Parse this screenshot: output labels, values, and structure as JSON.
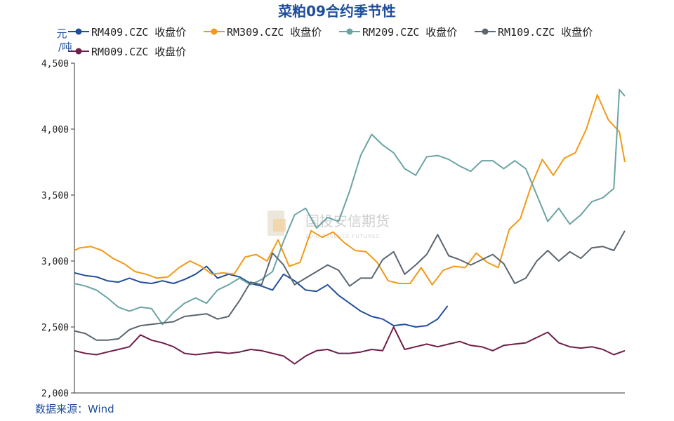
{
  "chart_data": {
    "type": "line",
    "title": "菜粕09合约季节性",
    "ylabel": "元/吨",
    "unit_line1": "元",
    "unit_line2": "/吨",
    "ylim": [
      2000,
      4500
    ],
    "yticks": [
      2000,
      2500,
      3000,
      3500,
      4000,
      4500
    ],
    "ytick_labels": [
      "2,000",
      "2,500",
      "3,000",
      "3,500",
      "4,000",
      "4,500"
    ],
    "x_domain": [
      0,
      100
    ],
    "grid": false,
    "legend_position": "top",
    "source": "数据来源：Wind",
    "watermark_cn": "国投安信期货",
    "watermark_en": "SDIC ESSENCE FUTURES",
    "series": [
      {
        "name": "RM409.CZC 收盘价",
        "color": "#1f4e9c",
        "x": [
          0,
          2,
          4,
          6,
          8,
          10,
          12,
          14,
          16,
          18,
          20,
          22,
          24,
          26,
          28,
          30,
          32,
          34,
          36,
          38,
          40,
          42,
          44,
          46,
          48,
          50,
          52,
          54,
          56,
          58,
          60,
          62,
          64,
          66,
          67.8
        ],
        "y": [
          2910,
          2890,
          2880,
          2850,
          2840,
          2870,
          2840,
          2830,
          2850,
          2830,
          2860,
          2900,
          2960,
          2870,
          2900,
          2880,
          2830,
          2810,
          2780,
          2900,
          2850,
          2780,
          2770,
          2820,
          2740,
          2680,
          2620,
          2580,
          2560,
          2510,
          2520,
          2500,
          2510,
          2560,
          2660
        ]
      },
      {
        "name": "RM309.CZC 收盘价",
        "color": "#f19a16",
        "x": [
          0,
          1,
          3,
          5,
          7,
          9,
          11,
          13,
          15,
          17,
          19,
          21,
          23,
          25,
          27,
          29,
          31,
          33,
          35,
          37,
          39,
          41,
          43,
          45,
          47,
          49,
          51,
          53,
          55,
          57,
          59,
          61,
          63,
          65,
          67,
          69,
          71,
          73,
          75,
          77,
          79,
          81,
          83,
          85,
          87,
          89,
          91,
          93,
          95,
          97,
          99,
          100
        ],
        "y": [
          3080,
          3100,
          3110,
          3080,
          3020,
          2980,
          2920,
          2900,
          2870,
          2880,
          2950,
          3000,
          2960,
          2900,
          2910,
          2900,
          3030,
          3050,
          3000,
          3160,
          2960,
          2990,
          3230,
          3180,
          3220,
          3140,
          3080,
          3070,
          2990,
          2850,
          2830,
          2830,
          2950,
          2820,
          2930,
          2960,
          2950,
          3060,
          2990,
          2950,
          3240,
          3320,
          3570,
          3770,
          3650,
          3780,
          3820,
          4000,
          4260,
          4070,
          3980,
          3750
        ]
      },
      {
        "name": "RM209.CZC 收盘价",
        "color": "#6ba4a4",
        "x": [
          0,
          2,
          4,
          6,
          8,
          10,
          12,
          14,
          16,
          18,
          20,
          22,
          24,
          26,
          28,
          30,
          32,
          34,
          36,
          38,
          40,
          42,
          44,
          46,
          48,
          50,
          52,
          54,
          56,
          58,
          60,
          62,
          64,
          66,
          68,
          70,
          72,
          74,
          76,
          78,
          80,
          82,
          84,
          86,
          88,
          90,
          92,
          94,
          96,
          98,
          99,
          100
        ],
        "y": [
          2830,
          2810,
          2780,
          2720,
          2650,
          2620,
          2650,
          2640,
          2520,
          2610,
          2680,
          2720,
          2680,
          2780,
          2820,
          2870,
          2820,
          2860,
          2920,
          3150,
          3350,
          3400,
          3250,
          3330,
          3300,
          3530,
          3800,
          3960,
          3880,
          3820,
          3700,
          3650,
          3790,
          3800,
          3770,
          3720,
          3680,
          3760,
          3760,
          3700,
          3760,
          3700,
          3500,
          3300,
          3400,
          3280,
          3350,
          3450,
          3480,
          3550,
          4300,
          4250
        ]
      },
      {
        "name": "RM109.CZC 收盘价",
        "color": "#5a6670",
        "x": [
          0,
          2,
          4,
          6,
          8,
          10,
          12,
          14,
          16,
          18,
          20,
          22,
          24,
          26,
          28,
          30,
          32,
          34,
          36,
          38,
          40,
          42,
          44,
          46,
          48,
          50,
          52,
          54,
          56,
          58,
          60,
          62,
          64,
          66,
          68,
          70,
          72,
          74,
          76,
          78,
          80,
          82,
          84,
          86,
          88,
          90,
          92,
          94,
          96,
          98,
          100
        ],
        "y": [
          2470,
          2450,
          2400,
          2400,
          2410,
          2480,
          2510,
          2520,
          2530,
          2540,
          2580,
          2590,
          2600,
          2560,
          2580,
          2700,
          2840,
          2820,
          3060,
          2970,
          2820,
          2870,
          2920,
          2970,
          2930,
          2810,
          2870,
          2870,
          3010,
          3070,
          2900,
          2970,
          3050,
          3200,
          3040,
          3010,
          2970,
          3010,
          3050,
          2980,
          2830,
          2870,
          3000,
          3080,
          3000,
          3070,
          3020,
          3100,
          3110,
          3080,
          3230
        ]
      },
      {
        "name": "RM009.CZC 收盘价",
        "color": "#6e1f49",
        "x": [
          0,
          2,
          4,
          6,
          8,
          10,
          12,
          14,
          16,
          18,
          20,
          22,
          24,
          26,
          28,
          30,
          32,
          34,
          36,
          38,
          40,
          42,
          44,
          46,
          48,
          50,
          52,
          54,
          56,
          58,
          60,
          62,
          64,
          66,
          68,
          70,
          72,
          74,
          76,
          78,
          80,
          82,
          84,
          86,
          88,
          90,
          92,
          94,
          96,
          98,
          100
        ],
        "y": [
          2320,
          2300,
          2290,
          2310,
          2330,
          2350,
          2440,
          2400,
          2380,
          2350,
          2300,
          2290,
          2300,
          2310,
          2300,
          2310,
          2330,
          2320,
          2300,
          2280,
          2220,
          2280,
          2320,
          2330,
          2300,
          2300,
          2310,
          2330,
          2320,
          2500,
          2330,
          2350,
          2370,
          2350,
          2370,
          2390,
          2360,
          2350,
          2320,
          2360,
          2370,
          2380,
          2420,
          2460,
          2380,
          2350,
          2340,
          2350,
          2330,
          2290,
          2320
        ]
      }
    ]
  }
}
